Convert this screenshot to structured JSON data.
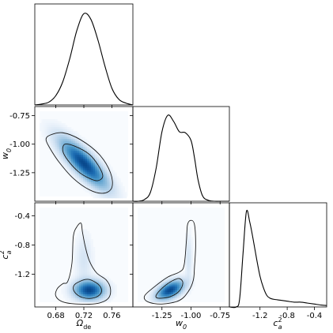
{
  "chart_data": {
    "type": "corner",
    "parameters": [
      {
        "id": "omega",
        "label_main": "Ω",
        "label_sub": "de",
        "label_sup": "",
        "range": [
          0.65,
          0.79
        ],
        "ticks": [
          0.68,
          0.72,
          0.76
        ],
        "tick_labels": [
          "0.68",
          "0.72",
          "0.76"
        ]
      },
      {
        "id": "w0",
        "label_main": "w",
        "label_sub": "0",
        "label_sup": "",
        "range": [
          -1.5,
          -0.67
        ],
        "ticks": [
          -1.25,
          -1.0,
          -0.75
        ],
        "tick_labels": [
          "-1.25",
          "-1.00",
          "-0.75"
        ]
      },
      {
        "id": "ca2",
        "label_main": "c",
        "label_sub": "a",
        "label_sup": "2",
        "range": [
          -1.65,
          -0.22
        ],
        "ticks": [
          -1.2,
          -0.8,
          -0.4
        ],
        "tick_labels": [
          "-1.2",
          "-0.8",
          "-0.4"
        ]
      }
    ],
    "marginals": [
      {
        "param": "omega",
        "x": [
          0.65,
          0.66,
          0.67,
          0.68,
          0.69,
          0.7,
          0.71,
          0.72,
          0.73,
          0.74,
          0.75,
          0.76,
          0.77,
          0.78,
          0.79
        ],
        "density": [
          0.0,
          0.01,
          0.03,
          0.1,
          0.25,
          0.5,
          0.8,
          0.98,
          0.92,
          0.7,
          0.42,
          0.18,
          0.06,
          0.02,
          0.0
        ]
      },
      {
        "param": "w0",
        "x": [
          -1.5,
          -1.45,
          -1.4,
          -1.35,
          -1.3,
          -1.25,
          -1.2,
          -1.15,
          -1.1,
          -1.05,
          -1.0,
          -0.97,
          -0.94,
          -0.9,
          -0.85,
          -0.8,
          -0.75,
          -0.7,
          -0.67
        ],
        "density": [
          0.0,
          0.0,
          0.02,
          0.1,
          0.38,
          0.8,
          0.99,
          0.92,
          0.8,
          0.79,
          0.7,
          0.5,
          0.25,
          0.06,
          0.01,
          0.0,
          0.0,
          0.0,
          0.0
        ]
      },
      {
        "param": "ca2",
        "x": [
          -1.65,
          -1.55,
          -1.5,
          -1.45,
          -1.4,
          -1.35,
          -1.3,
          -1.25,
          -1.2,
          -1.15,
          -1.1,
          -1.05,
          -1.0,
          -0.9,
          -0.8,
          -0.7,
          -0.6,
          -0.5,
          -0.4,
          -0.3,
          -0.22
        ],
        "density": [
          0.0,
          0.0,
          0.08,
          0.55,
          0.99,
          0.88,
          0.7,
          0.5,
          0.32,
          0.2,
          0.12,
          0.09,
          0.08,
          0.07,
          0.06,
          0.05,
          0.05,
          0.04,
          0.03,
          0.02,
          0.015
        ]
      }
    ],
    "joint": [
      {
        "x": "omega",
        "y": "w0",
        "blobs": [
          {
            "cx": 0.72,
            "cy": -1.17,
            "sx": 0.022,
            "sy": 0.14,
            "rho": -0.82,
            "w": 1.0
          }
        ],
        "contours": [
          {
            "level": "inner",
            "points": [
              [
                0.693,
                -1.0
              ],
              [
                0.708,
                -1.02
              ],
              [
                0.728,
                -1.09
              ],
              [
                0.741,
                -1.19
              ],
              [
                0.747,
                -1.28
              ],
              [
                0.74,
                -1.32
              ],
              [
                0.728,
                -1.3
              ],
              [
                0.712,
                -1.24
              ],
              [
                0.697,
                -1.14
              ],
              [
                0.69,
                -1.06
              ]
            ]
          },
          {
            "level": "outer",
            "points": [
              [
                0.672,
                -0.92
              ],
              [
                0.69,
                -0.9
              ],
              [
                0.715,
                -0.96
              ],
              [
                0.742,
                -1.09
              ],
              [
                0.758,
                -1.25
              ],
              [
                0.76,
                -1.38
              ],
              [
                0.748,
                -1.43
              ],
              [
                0.728,
                -1.4
              ],
              [
                0.705,
                -1.3
              ],
              [
                0.685,
                -1.16
              ],
              [
                0.672,
                -1.04
              ],
              [
                0.666,
                -0.96
              ]
            ]
          }
        ]
      },
      {
        "x": "omega",
        "y": "ca2",
        "blobs": [
          {
            "cx": 0.728,
            "cy": -1.42,
            "sx": 0.014,
            "sy": 0.085,
            "rho": 0.0,
            "w": 1.0
          },
          {
            "cx": 0.72,
            "cy": -1.0,
            "sx": 0.008,
            "sy": 0.22,
            "rho": 0.0,
            "w": 0.12
          }
        ],
        "contours": [
          {
            "level": "inner",
            "points": [
              [
                0.71,
                -1.32
              ],
              [
                0.725,
                -1.27
              ],
              [
                0.738,
                -1.32
              ],
              [
                0.745,
                -1.4
              ],
              [
                0.743,
                -1.48
              ],
              [
                0.732,
                -1.53
              ],
              [
                0.718,
                -1.52
              ],
              [
                0.708,
                -1.46
              ],
              [
                0.705,
                -1.38
              ]
            ]
          },
          {
            "level": "outer",
            "points": [
              [
                0.697,
                -1.3
              ],
              [
                0.703,
                -1.05
              ],
              [
                0.705,
                -0.68
              ],
              [
                0.71,
                -0.55
              ],
              [
                0.716,
                -0.5
              ],
              [
                0.718,
                -0.62
              ],
              [
                0.722,
                -0.82
              ],
              [
                0.728,
                -1.02
              ],
              [
                0.738,
                -1.18
              ],
              [
                0.752,
                -1.28
              ],
              [
                0.758,
                -1.4
              ],
              [
                0.755,
                -1.53
              ],
              [
                0.74,
                -1.6
              ],
              [
                0.712,
                -1.61
              ],
              [
                0.69,
                -1.58
              ],
              [
                0.68,
                -1.5
              ],
              [
                0.682,
                -1.4
              ],
              [
                0.69,
                -1.33
              ]
            ]
          }
        ]
      },
      {
        "x": "w0",
        "y": "ca2",
        "blobs": [
          {
            "cx": -1.18,
            "cy": -1.42,
            "sx": 0.075,
            "sy": 0.085,
            "rho": 0.5,
            "w": 1.0
          },
          {
            "cx": -1.02,
            "cy": -0.98,
            "sx": 0.02,
            "sy": 0.22,
            "rho": 0.0,
            "w": 0.12
          }
        ],
        "contours": [
          {
            "level": "inner",
            "points": [
              [
                -1.3,
                -1.49
              ],
              [
                -1.24,
                -1.38
              ],
              [
                -1.16,
                -1.29
              ],
              [
                -1.1,
                -1.26
              ],
              [
                -1.07,
                -1.32
              ],
              [
                -1.1,
                -1.43
              ],
              [
                -1.18,
                -1.51
              ],
              [
                -1.28,
                -1.53
              ]
            ]
          },
          {
            "level": "outer",
            "points": [
              [
                -1.4,
                -1.5
              ],
              [
                -1.32,
                -1.38
              ],
              [
                -1.2,
                -1.24
              ],
              [
                -1.1,
                -1.17
              ],
              [
                -1.06,
                -1.08
              ],
              [
                -1.04,
                -0.75
              ],
              [
                -1.03,
                -0.52
              ],
              [
                -1.0,
                -0.46
              ],
              [
                -0.97,
                -0.52
              ],
              [
                -0.96,
                -0.8
              ],
              [
                -0.97,
                -1.1
              ],
              [
                -0.98,
                -1.28
              ],
              [
                -1.02,
                -1.43
              ],
              [
                -1.1,
                -1.56
              ],
              [
                -1.25,
                -1.61
              ],
              [
                -1.37,
                -1.58
              ]
            ]
          }
        ]
      }
    ],
    "colormap": "Blues",
    "contour_color": "#1a1a1a",
    "line_color": "#000000"
  }
}
